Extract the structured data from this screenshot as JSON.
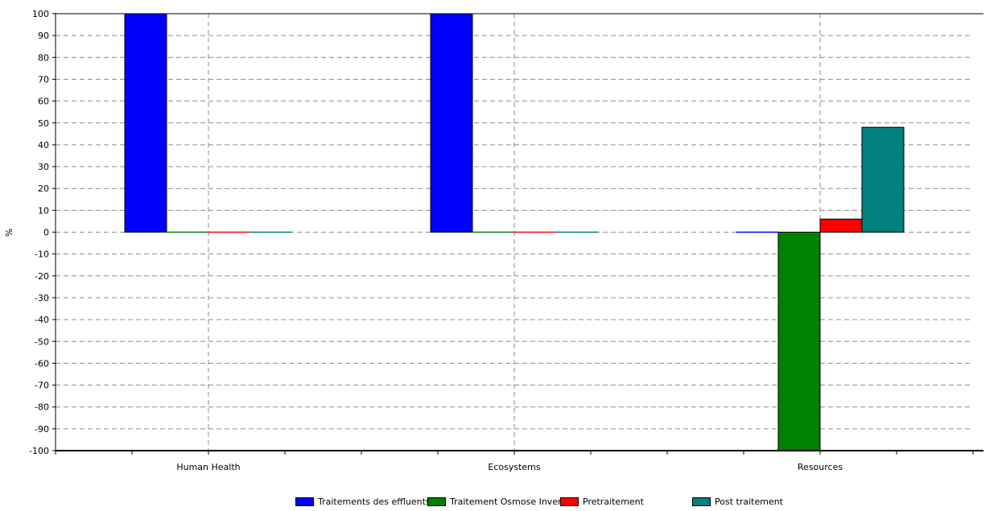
{
  "chart_data": {
    "type": "bar",
    "title": "",
    "xlabel": "",
    "ylabel": "%",
    "ylim": [
      -100,
      100
    ],
    "yticks": [
      100,
      90,
      80,
      70,
      60,
      50,
      40,
      30,
      20,
      10,
      0,
      -10,
      -20,
      -30,
      -40,
      -50,
      -60,
      -70,
      -80,
      -90,
      -100
    ],
    "grid": true,
    "legend_position": "bottom",
    "categories": [
      "Human Health",
      "Ecosystems",
      "Resources"
    ],
    "series": [
      {
        "name": "Traitements des effluents2",
        "color": "#0000ff",
        "values": [
          100,
          100,
          0
        ]
      },
      {
        "name": "Traitement Osmose Inverse",
        "color": "#008000",
        "values": [
          0,
          0,
          -100
        ]
      },
      {
        "name": "Pretraitement",
        "color": "#ff0000",
        "values": [
          0,
          0,
          6
        ]
      },
      {
        "name": "Post traitement",
        "color": "#008080",
        "values": [
          0,
          0,
          48
        ]
      }
    ]
  }
}
